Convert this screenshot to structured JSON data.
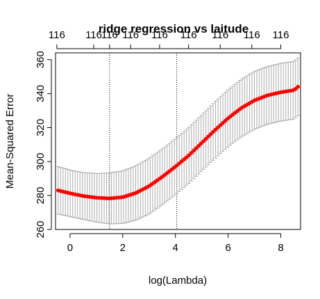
{
  "chart_data": {
    "type": "scatter",
    "title": "ridge regression vs laitude",
    "xlabel": "log(Lambda)",
    "ylabel": "Mean-Squared Error",
    "xlim": [
      -0.55,
      8.75
    ],
    "ylim": [
      260,
      364
    ],
    "x_ticks": [
      0,
      2,
      4,
      6,
      8
    ],
    "y_ticks": [
      260,
      280,
      300,
      320,
      340,
      360
    ],
    "top_axis": {
      "ticks": [
        -0.5,
        0.9,
        1.5,
        2.3,
        3.4,
        4.5,
        5.7,
        6.9,
        8.0
      ],
      "labels": [
        "116",
        "116",
        "116",
        "116",
        "116",
        "116",
        "116",
        "116",
        "116"
      ]
    },
    "vlines": [
      1.5,
      4.05
    ],
    "point_color": "#ff0000",
    "errorbar_color": "#aaaaaa",
    "curve": {
      "x_start": -0.45,
      "x_end": 8.65,
      "n_points": 100,
      "x": [
        -0.45,
        0.0,
        0.5,
        1.0,
        1.5,
        2.0,
        2.5,
        3.0,
        3.5,
        4.0,
        4.5,
        5.0,
        5.5,
        6.0,
        6.5,
        7.0,
        7.5,
        8.0,
        8.5,
        8.65
      ],
      "mse": [
        283,
        281.3,
        279.7,
        278.7,
        278.3,
        279.0,
        281.5,
        285.5,
        291.0,
        297.0,
        303.5,
        311.0,
        318.5,
        325.5,
        331.5,
        336.0,
        339.0,
        340.8,
        342.0,
        344
      ],
      "half_width": [
        14.0,
        13.7,
        13.8,
        14.3,
        15.0,
        15.5,
        16.0,
        16.5,
        16.5,
        16.5,
        16.5,
        16.5,
        16.7,
        16.8,
        17.0,
        17.0,
        17.0,
        17.0,
        17.0,
        17.0
      ]
    }
  }
}
